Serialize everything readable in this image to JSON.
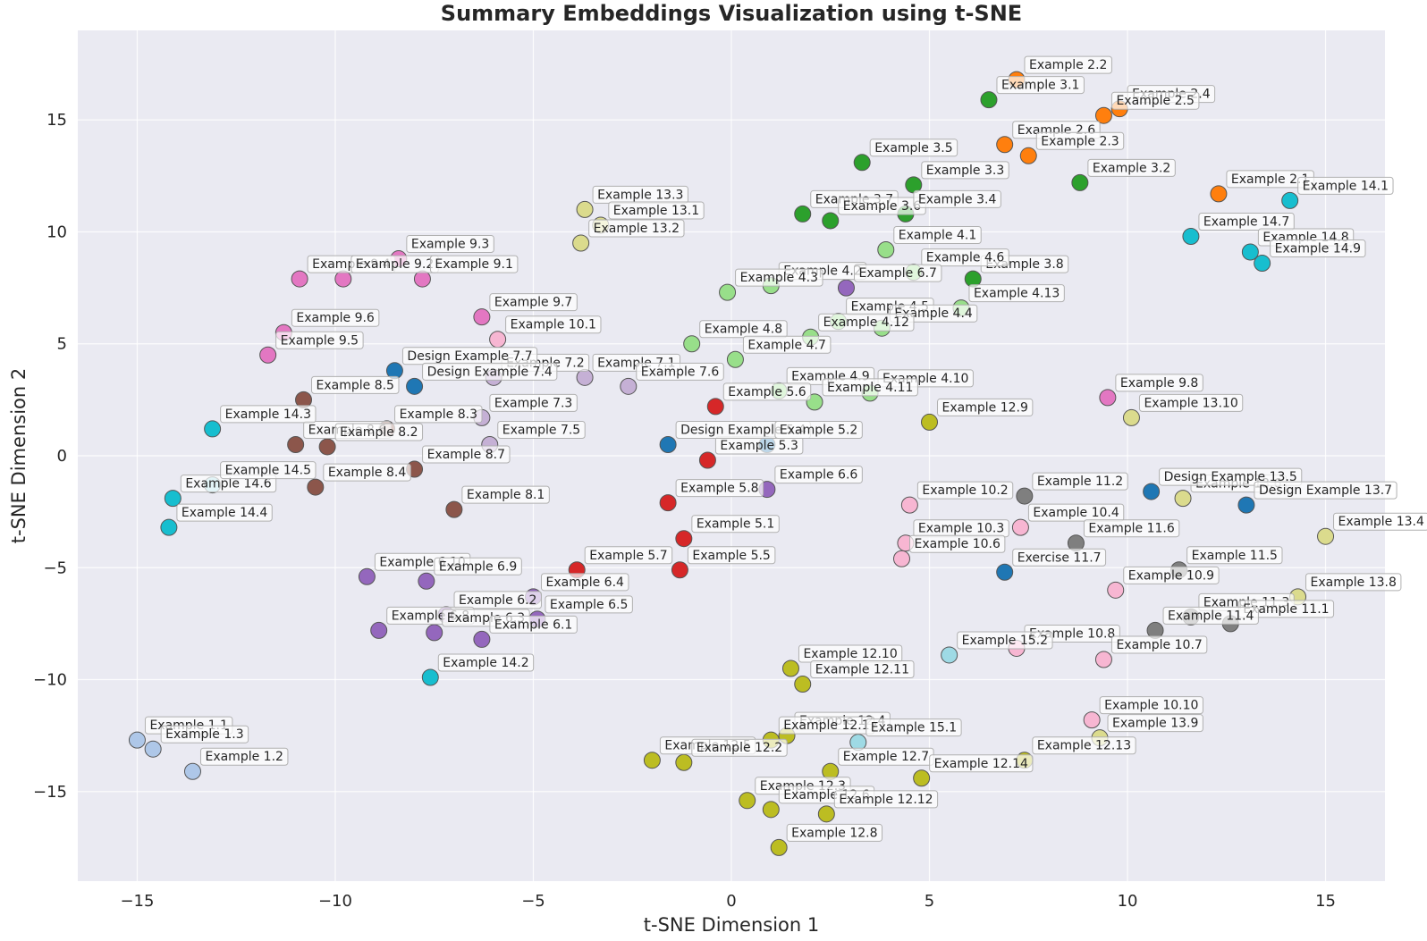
{
  "chart_data": {
    "type": "scatter",
    "title": "Summary Embeddings Visualization using t-SNE",
    "xlabel": "t-SNE Dimension 1",
    "ylabel": "t-SNE Dimension 2",
    "xlim": [
      -16.5,
      16.5
    ],
    "ylim": [
      -19,
      19
    ],
    "xticks": [
      -15,
      -10,
      -5,
      0,
      5,
      10,
      15
    ],
    "yticks": [
      -15,
      -10,
      -5,
      0,
      5,
      10,
      15
    ],
    "xtick_labels": [
      "−15",
      "−10",
      "−5",
      "0",
      "5",
      "10",
      "15"
    ],
    "ytick_labels": [
      "−15",
      "−10",
      "−5",
      "0",
      "5",
      "10",
      "15"
    ],
    "grid": true,
    "background": "#eaeaf2",
    "colors": {
      "c1": "#aec7e8",
      "c2": "#ff7f0e",
      "c3": "#2ca02c",
      "c4": "#98df8a",
      "c5": "#d62728",
      "c6": "#9467bd",
      "c7": "#c5b0d5",
      "c8": "#8c564b",
      "c9": "#e377c2",
      "c10": "#f7b6d2",
      "c11": "#7f7f7f",
      "c12": "#bcbd22",
      "c13": "#dbdb8d",
      "c14": "#17becf",
      "c15": "#9edae5",
      "cd": "#1f77b4"
    },
    "points": [
      {
        "label": "Example 1.1",
        "x": -15.0,
        "y": -12.7,
        "c": "c1"
      },
      {
        "label": "Example 1.3",
        "x": -14.6,
        "y": -13.1,
        "c": "c1"
      },
      {
        "label": "Example 1.2",
        "x": -13.6,
        "y": -14.1,
        "c": "c1"
      },
      {
        "label": "Example 2.2",
        "x": 7.2,
        "y": 16.8,
        "c": "c2"
      },
      {
        "label": "Example 2.4",
        "x": 9.8,
        "y": 15.5,
        "c": "c2"
      },
      {
        "label": "Example 2.5",
        "x": 9.4,
        "y": 15.2,
        "c": "c2"
      },
      {
        "label": "Example 2.6",
        "x": 6.9,
        "y": 13.9,
        "c": "c2"
      },
      {
        "label": "Example 2.3",
        "x": 7.5,
        "y": 13.4,
        "c": "c2"
      },
      {
        "label": "Example 2.1",
        "x": 12.3,
        "y": 11.7,
        "c": "c2"
      },
      {
        "label": "Example 3.1",
        "x": 6.5,
        "y": 15.9,
        "c": "c3"
      },
      {
        "label": "Example 3.5",
        "x": 3.3,
        "y": 13.1,
        "c": "c3"
      },
      {
        "label": "Example 3.3",
        "x": 4.6,
        "y": 12.1,
        "c": "c3"
      },
      {
        "label": "Example 3.2",
        "x": 8.8,
        "y": 12.2,
        "c": "c3"
      },
      {
        "label": "Example 3.7",
        "x": 1.8,
        "y": 10.8,
        "c": "c3"
      },
      {
        "label": "Example 3.6",
        "x": 2.5,
        "y": 10.5,
        "c": "c3"
      },
      {
        "label": "Example 3.4",
        "x": 4.4,
        "y": 10.8,
        "c": "c3"
      },
      {
        "label": "Example 3.8",
        "x": 6.1,
        "y": 7.9,
        "c": "c3"
      },
      {
        "label": "Example 4.1",
        "x": 3.9,
        "y": 9.2,
        "c": "c4"
      },
      {
        "label": "Example 4.6",
        "x": 4.6,
        "y": 8.2,
        "c": "c4"
      },
      {
        "label": "Example 4.2",
        "x": 1.0,
        "y": 7.6,
        "c": "c4"
      },
      {
        "label": "Example 4.3",
        "x": -0.1,
        "y": 7.3,
        "c": "c4"
      },
      {
        "label": "Example 4.13",
        "x": 5.8,
        "y": 6.6,
        "c": "c4"
      },
      {
        "label": "Example 4.5",
        "x": 2.7,
        "y": 6.0,
        "c": "c4"
      },
      {
        "label": "Example 4.4",
        "x": 3.8,
        "y": 5.7,
        "c": "c4"
      },
      {
        "label": "Example 4.12",
        "x": 2.0,
        "y": 5.3,
        "c": "c4"
      },
      {
        "label": "Example 4.8",
        "x": -1.0,
        "y": 5.0,
        "c": "c4"
      },
      {
        "label": "Example 4.7",
        "x": 0.1,
        "y": 4.3,
        "c": "c4"
      },
      {
        "label": "Example 4.9",
        "x": 1.2,
        "y": 2.9,
        "c": "c4"
      },
      {
        "label": "Example 4.10",
        "x": 3.5,
        "y": 2.8,
        "c": "c4"
      },
      {
        "label": "Example 4.11",
        "x": 2.1,
        "y": 2.4,
        "c": "c4"
      },
      {
        "label": "Example 5.6",
        "x": -0.4,
        "y": 2.2,
        "c": "c5"
      },
      {
        "label": "Example 5.3",
        "x": -0.6,
        "y": -0.2,
        "c": "c5"
      },
      {
        "label": "Example 5.8",
        "x": -1.6,
        "y": -2.1,
        "c": "c5"
      },
      {
        "label": "Example 5.1",
        "x": -1.2,
        "y": -3.7,
        "c": "c5"
      },
      {
        "label": "Example 5.7",
        "x": -3.9,
        "y": -5.1,
        "c": "c5"
      },
      {
        "label": "Example 5.5",
        "x": -1.3,
        "y": -5.1,
        "c": "c5"
      },
      {
        "label": "Example 6.7",
        "x": 2.9,
        "y": 7.5,
        "c": "c6"
      },
      {
        "label": "Example 6.6",
        "x": 0.9,
        "y": -1.5,
        "c": "c6"
      },
      {
        "label": "Example 6.10",
        "x": -9.2,
        "y": -5.4,
        "c": "c6"
      },
      {
        "label": "Example 6.9",
        "x": -7.7,
        "y": -5.6,
        "c": "c6"
      },
      {
        "label": "Example 6.4",
        "x": -5.0,
        "y": -6.3,
        "c": "c6"
      },
      {
        "label": "Example 6.2",
        "x": -7.2,
        "y": -7.1,
        "c": "c6"
      },
      {
        "label": "Example 6.5",
        "x": -4.9,
        "y": -7.3,
        "c": "c6"
      },
      {
        "label": "Example 6.8",
        "x": -8.9,
        "y": -7.8,
        "c": "c6"
      },
      {
        "label": "Example 6.3",
        "x": -7.5,
        "y": -7.9,
        "c": "c6"
      },
      {
        "label": "Example 6.1",
        "x": -6.3,
        "y": -8.2,
        "c": "c6"
      },
      {
        "label": "Example 7.2",
        "x": -6.0,
        "y": 3.5,
        "c": "c7"
      },
      {
        "label": "Example 7.1",
        "x": -3.7,
        "y": 3.5,
        "c": "c7"
      },
      {
        "label": "Example 7.6",
        "x": -2.6,
        "y": 3.1,
        "c": "c7"
      },
      {
        "label": "Example 7.3",
        "x": -6.3,
        "y": 1.7,
        "c": "c7"
      },
      {
        "label": "Example 7.5",
        "x": -6.1,
        "y": 0.5,
        "c": "c7"
      },
      {
        "label": "Example 8.5",
        "x": -10.8,
        "y": 2.5,
        "c": "c8"
      },
      {
        "label": "Example 8.3",
        "x": -8.7,
        "y": 1.2,
        "c": "c8"
      },
      {
        "label": "Example 8.6",
        "x": -11.0,
        "y": 0.5,
        "c": "c8"
      },
      {
        "label": "Example 8.2",
        "x": -10.2,
        "y": 0.4,
        "c": "c8"
      },
      {
        "label": "Example 8.7",
        "x": -8.0,
        "y": -0.6,
        "c": "c8"
      },
      {
        "label": "Example 8.4",
        "x": -10.5,
        "y": -1.4,
        "c": "c8"
      },
      {
        "label": "Example 8.1",
        "x": -7.0,
        "y": -2.4,
        "c": "c8"
      },
      {
        "label": "Example 9.3",
        "x": -8.4,
        "y": 8.8,
        "c": "c9"
      },
      {
        "label": "Example 9.4",
        "x": -10.9,
        "y": 7.9,
        "c": "c9"
      },
      {
        "label": "Example 9.2",
        "x": -9.8,
        "y": 7.9,
        "c": "c9"
      },
      {
        "label": "Example 9.1",
        "x": -7.8,
        "y": 7.9,
        "c": "c9"
      },
      {
        "label": "Example 9.7",
        "x": -6.3,
        "y": 6.2,
        "c": "c9"
      },
      {
        "label": "Example 9.6",
        "x": -11.3,
        "y": 5.5,
        "c": "c9"
      },
      {
        "label": "Example 9.5",
        "x": -11.7,
        "y": 4.5,
        "c": "c9"
      },
      {
        "label": "Example 9.8",
        "x": 9.5,
        "y": 2.6,
        "c": "c9"
      },
      {
        "label": "Example 10.1",
        "x": -5.9,
        "y": 5.2,
        "c": "c10"
      },
      {
        "label": "Example 10.2",
        "x": 4.5,
        "y": -2.2,
        "c": "c10"
      },
      {
        "label": "Example 10.3",
        "x": 4.4,
        "y": -3.9,
        "c": "c10"
      },
      {
        "label": "Example 10.4",
        "x": 7.3,
        "y": -3.2,
        "c": "c10"
      },
      {
        "label": "Example 10.6",
        "x": 4.3,
        "y": -4.6,
        "c": "c10"
      },
      {
        "label": "Example 10.9",
        "x": 9.7,
        "y": -6.0,
        "c": "c10"
      },
      {
        "label": "Example 10.8",
        "x": 7.2,
        "y": -8.6,
        "c": "c10"
      },
      {
        "label": "Example 10.7",
        "x": 9.4,
        "y": -9.1,
        "c": "c10"
      },
      {
        "label": "Example 10.10",
        "x": 9.1,
        "y": -11.8,
        "c": "c10"
      },
      {
        "label": "Example 11.2",
        "x": 7.4,
        "y": -1.8,
        "c": "c11"
      },
      {
        "label": "Example 11.6",
        "x": 8.7,
        "y": -3.9,
        "c": "c11"
      },
      {
        "label": "Example 11.5",
        "x": 11.3,
        "y": -5.1,
        "c": "c11"
      },
      {
        "label": "Example 11.3",
        "x": 11.6,
        "y": -7.2,
        "c": "c11"
      },
      {
        "label": "Example 11.1",
        "x": 12.6,
        "y": -7.5,
        "c": "c11"
      },
      {
        "label": "Example 11.4",
        "x": 10.7,
        "y": -7.8,
        "c": "c11"
      },
      {
        "label": "Example 12.9",
        "x": 5.0,
        "y": 1.5,
        "c": "c12"
      },
      {
        "label": "Example 12.10",
        "x": 1.5,
        "y": -9.5,
        "c": "c12"
      },
      {
        "label": "Example 12.11",
        "x": 1.8,
        "y": -10.2,
        "c": "c12"
      },
      {
        "label": "Example 12.4",
        "x": 1.4,
        "y": -12.5,
        "c": "c12"
      },
      {
        "label": "Example 12.1",
        "x": 1.0,
        "y": -12.7,
        "c": "c12"
      },
      {
        "label": "Example 12.5",
        "x": -2.0,
        "y": -13.6,
        "c": "c12"
      },
      {
        "label": "Example 12.2",
        "x": -1.2,
        "y": -13.7,
        "c": "c12"
      },
      {
        "label": "Example 12.7",
        "x": 2.5,
        "y": -14.1,
        "c": "c12"
      },
      {
        "label": "Example 12.14",
        "x": 4.8,
        "y": -14.4,
        "c": "c12"
      },
      {
        "label": "Example 12.13",
        "x": 7.4,
        "y": -13.6,
        "c": "c12"
      },
      {
        "label": "Example 12.3",
        "x": 0.4,
        "y": -15.4,
        "c": "c12"
      },
      {
        "label": "Example 12.6",
        "x": 1.0,
        "y": -15.8,
        "c": "c12"
      },
      {
        "label": "Example 12.12",
        "x": 2.4,
        "y": -16.0,
        "c": "c12"
      },
      {
        "label": "Example 12.8",
        "x": 1.2,
        "y": -17.5,
        "c": "c12"
      },
      {
        "label": "Example 13.3",
        "x": -3.7,
        "y": 11.0,
        "c": "c13"
      },
      {
        "label": "Example 13.1",
        "x": -3.3,
        "y": 10.3,
        "c": "c13"
      },
      {
        "label": "Example 13.2",
        "x": -3.8,
        "y": 9.5,
        "c": "c13"
      },
      {
        "label": "Example 13.10",
        "x": 10.1,
        "y": 1.7,
        "c": "c13"
      },
      {
        "label": "Example 13.6",
        "x": 11.4,
        "y": -1.9,
        "c": "c13"
      },
      {
        "label": "Example 13.4",
        "x": 15.0,
        "y": -3.6,
        "c": "c13"
      },
      {
        "label": "Example 13.8",
        "x": 14.3,
        "y": -6.3,
        "c": "c13"
      },
      {
        "label": "Example 13.9",
        "x": 9.3,
        "y": -12.6,
        "c": "c13"
      },
      {
        "label": "Example 14.1",
        "x": 14.1,
        "y": 11.4,
        "c": "c14"
      },
      {
        "label": "Example 14.7",
        "x": 11.6,
        "y": 9.8,
        "c": "c14"
      },
      {
        "label": "Example 14.8",
        "x": 13.1,
        "y": 9.1,
        "c": "c14"
      },
      {
        "label": "Example 14.9",
        "x": 13.4,
        "y": 8.6,
        "c": "c14"
      },
      {
        "label": "Example 14.3",
        "x": -13.1,
        "y": 1.2,
        "c": "c14"
      },
      {
        "label": "Example 14.6",
        "x": -14.1,
        "y": -1.9,
        "c": "c14"
      },
      {
        "label": "Example 14.4",
        "x": -14.2,
        "y": -3.2,
        "c": "c14"
      },
      {
        "label": "Example 14.2",
        "x": -7.6,
        "y": -9.9,
        "c": "c14"
      },
      {
        "label": "Example 14.5",
        "x": -13.1,
        "y": -1.3,
        "c": "c15"
      },
      {
        "label": "Example 15.2",
        "x": 5.5,
        "y": -8.9,
        "c": "c15"
      },
      {
        "label": "Example 15.1",
        "x": 3.2,
        "y": -12.8,
        "c": "c15"
      },
      {
        "label": "Exercise 11.7",
        "x": 6.9,
        "y": -5.2,
        "c": "cd"
      },
      {
        "label": "Design Example 7.7",
        "x": -8.5,
        "y": 3.8,
        "c": "cd"
      },
      {
        "label": "Design Example 7.4",
        "x": -8.0,
        "y": 3.1,
        "c": "cd"
      },
      {
        "label": "Design Example 5.4",
        "x": -1.6,
        "y": 0.5,
        "c": "cd"
      },
      {
        "label": "Example 5.2",
        "x": 0.9,
        "y": 0.5,
        "c": "cd"
      },
      {
        "label": "Design Example 13.5",
        "x": 10.6,
        "y": -1.6,
        "c": "cd"
      },
      {
        "label": "Design Example 13.7",
        "x": 13.0,
        "y": -2.2,
        "c": "cd"
      }
    ]
  }
}
